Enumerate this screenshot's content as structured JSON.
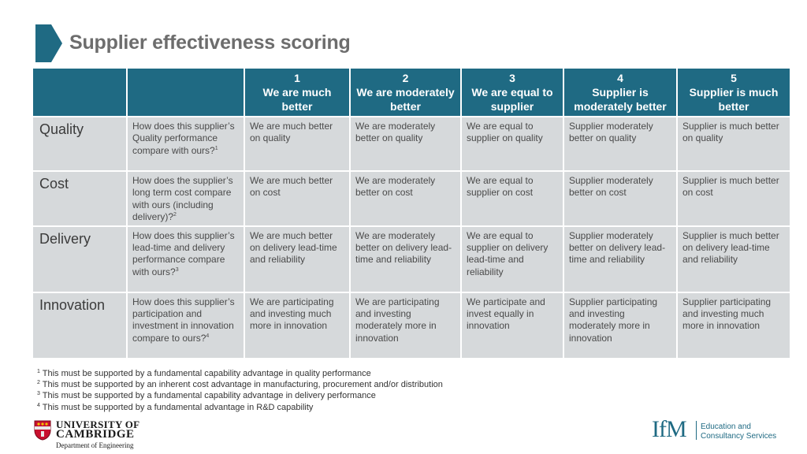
{
  "title": "Supplier effectiveness scoring",
  "colors": {
    "header_bg": "#1f6a83",
    "cell_bg": "#d6d9db",
    "accent": "#1f6a83",
    "title": "#6d6d6d"
  },
  "table": {
    "headers": [
      {
        "num": "1",
        "label": "We are much better"
      },
      {
        "num": "2",
        "label": "We are moderately better"
      },
      {
        "num": "3",
        "label": "We are equal to supplier"
      },
      {
        "num": "4",
        "label": "Supplier is moderately better"
      },
      {
        "num": "5",
        "label": "Supplier is much better"
      }
    ],
    "rows": [
      {
        "label": "Quality",
        "question": "How does this supplier’s Quality performance compare with ours?",
        "question_sup": "1",
        "cells": [
          "We are much better on quality",
          "We are moderately better on quality",
          "We are equal to supplier on quality",
          "Supplier moderately better on quality",
          "Supplier is much better on quality"
        ]
      },
      {
        "label": "Cost",
        "question": "How does the supplier’s long term cost compare with ours (including delivery)?",
        "question_sup": "2",
        "cells": [
          "We are much better on cost",
          "We are moderately better on cost",
          "We are equal to supplier on cost",
          "Supplier moderately better on cost",
          "Supplier is much better on cost"
        ]
      },
      {
        "label": "Delivery",
        "question": "How does this supplier’s lead-time and delivery performance compare with ours?",
        "question_sup": "3",
        "cells": [
          "We are much better on delivery lead-time and reliability",
          "We are moderately better on delivery lead-time and reliability",
          "We are equal to supplier on delivery lead-time and reliability",
          "Supplier moderately better on delivery lead-time and reliability",
          "Supplier is much better on delivery lead-time and reliability"
        ]
      },
      {
        "label": "Innovation",
        "question": "How does this supplier’s participation and investment in innovation compare to ours?",
        "question_sup": "4",
        "cells": [
          "We are participating and investing much more in innovation",
          "We are participating and investing moderately more in innovation",
          "We participate and invest equally in innovation",
          "Supplier participating and investing moderately more in innovation",
          "Supplier participating and investing much more in innovation"
        ]
      }
    ]
  },
  "footnotes": [
    {
      "num": "1",
      "text": "This must be supported by a fundamental capability advantage in quality performance"
    },
    {
      "num": "2",
      "text": "This must be supported by an inherent cost advantage in manufacturing, procurement and/or distribution"
    },
    {
      "num": "3",
      "text": "This must be supported by a fundamental capability advantage in delivery performance"
    },
    {
      "num": "4",
      "text": "This must be supported by a fundamental advantage in R&D capability"
    }
  ],
  "cambridge_logo": {
    "line1": "UNIVERSITY OF",
    "line2": "CAMBRIDGE",
    "dept": "Department of Engineering",
    "icon": "cambridge-shield-icon"
  },
  "ifm_logo": {
    "mark": "IfM",
    "line1": "Education and",
    "line2": "Consultancy Services"
  }
}
